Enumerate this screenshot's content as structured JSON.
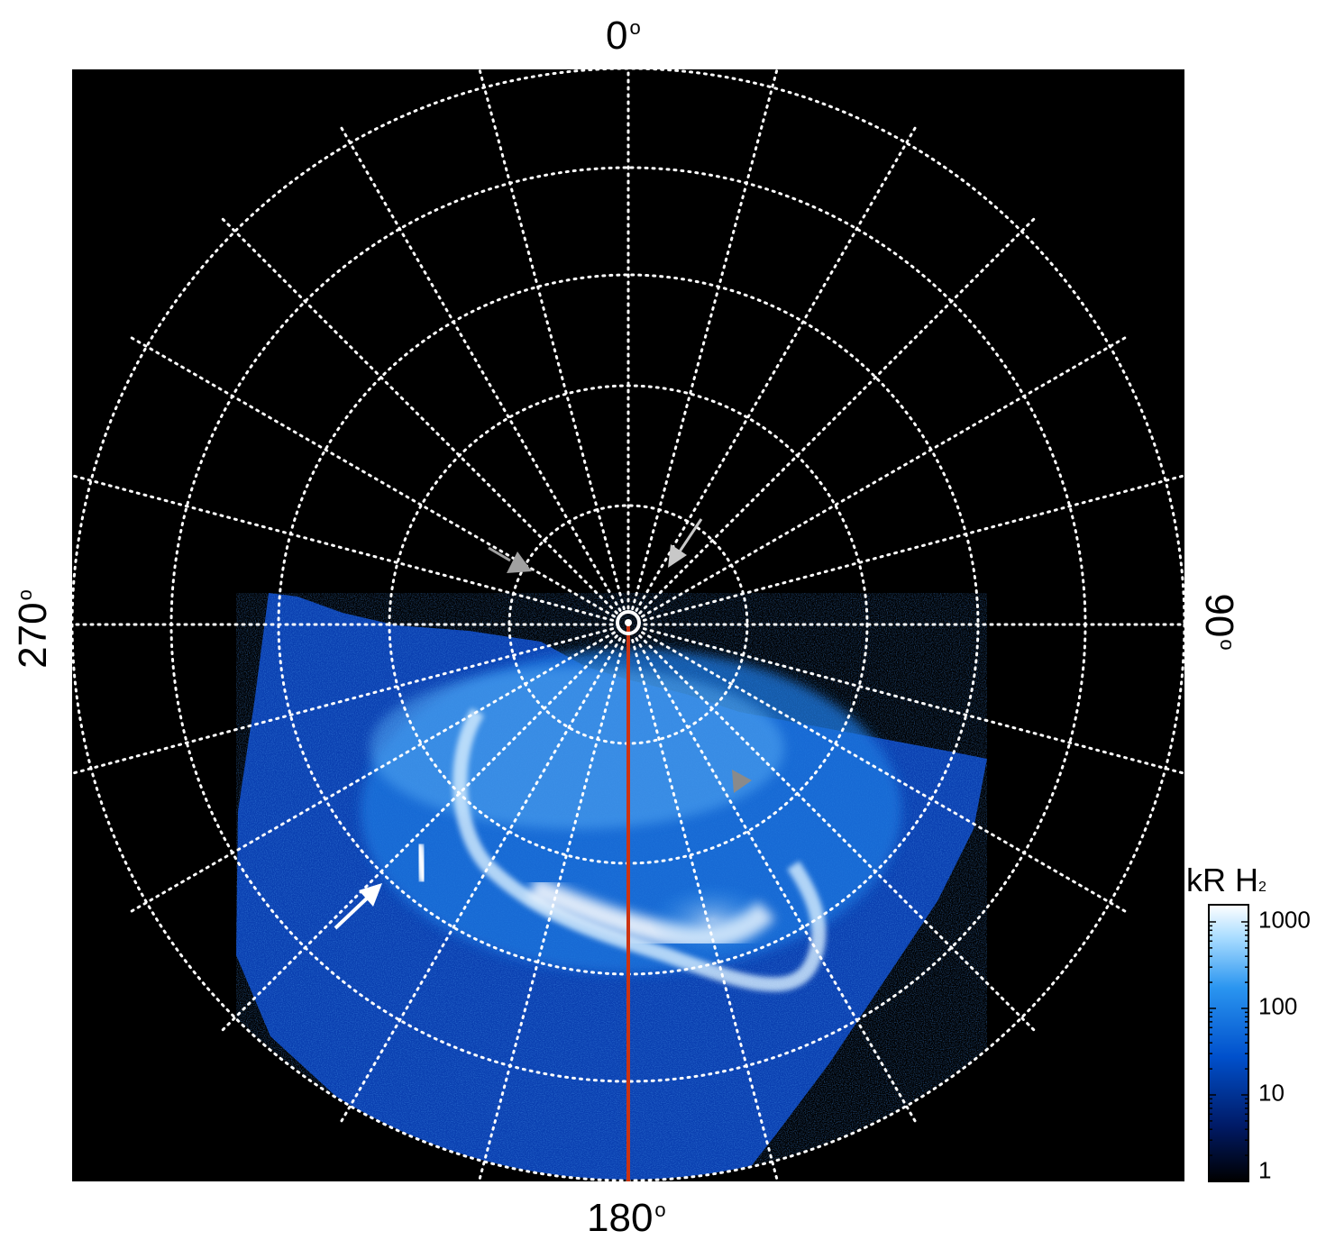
{
  "map": {
    "labels": {
      "top": "0",
      "bottom": "180",
      "left": "270",
      "right": "90",
      "degree_mark": "o"
    },
    "background_color": "#000000",
    "grid_color": "#ffffff",
    "meridian_line_color": "#cc3311",
    "annotations": [
      {
        "type": "arrow",
        "color": "#ffffff",
        "name": "white-arrow"
      },
      {
        "type": "arrow",
        "color": "#c8c8c8",
        "name": "gray-arrow-top-right"
      },
      {
        "type": "arrow",
        "color": "#a0a0a0",
        "name": "gray-arrow-top-left"
      },
      {
        "type": "arrow",
        "color": "#8a8a8a",
        "name": "gray-arrow-lower-right"
      }
    ]
  },
  "colorbar": {
    "title": "kR H",
    "title_subscript": "2",
    "scale": "log",
    "ticks": [
      "1",
      "10",
      "100",
      "1000"
    ],
    "colors": [
      "#000000",
      "#001a66",
      "#0050cc",
      "#2a95f0",
      "#a8dcff",
      "#ffffff"
    ]
  }
}
